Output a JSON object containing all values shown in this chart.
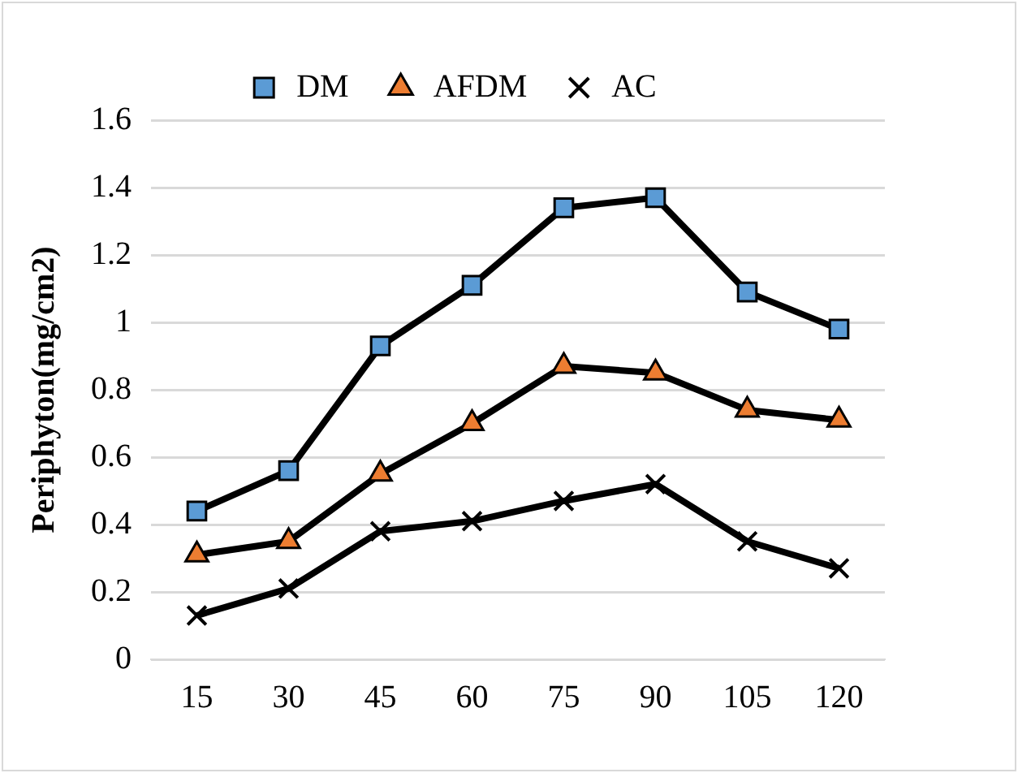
{
  "chart_data": {
    "type": "line",
    "ylabel": "Periphyton(mg/cm2)",
    "categories": [
      "15",
      "30",
      "45",
      "60",
      "75",
      "90",
      "105",
      "120"
    ],
    "series": [
      {
        "name": "DM",
        "color": "#5b9bd5",
        "marker": "square",
        "values": [
          0.44,
          0.56,
          0.93,
          1.11,
          1.34,
          1.37,
          1.09,
          0.98
        ]
      },
      {
        "name": "AFDM",
        "color": "#ed7d31",
        "marker": "triangle",
        "values": [
          0.31,
          0.35,
          0.55,
          0.7,
          0.87,
          0.85,
          0.74,
          0.71
        ]
      },
      {
        "name": "AC",
        "color": "#000000",
        "marker": "cross",
        "values": [
          0.13,
          0.21,
          0.38,
          0.41,
          0.47,
          0.52,
          0.35,
          0.27
        ]
      }
    ],
    "ylim": [
      0,
      1.6
    ],
    "yticks": [
      0,
      0.2,
      0.4,
      0.6,
      0.8,
      1,
      1.2,
      1.4,
      1.6
    ],
    "grid": "y",
    "legend": "top",
    "line_style": "solid"
  }
}
